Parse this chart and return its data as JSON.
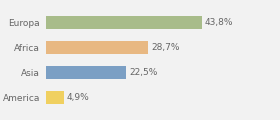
{
  "categories": [
    "Europa",
    "Africa",
    "Asia",
    "America"
  ],
  "values": [
    43.8,
    28.7,
    22.5,
    4.9
  ],
  "labels": [
    "43,8%",
    "28,7%",
    "22,5%",
    "4,9%"
  ],
  "bar_colors": [
    "#a8bc8a",
    "#e8b882",
    "#7b9fc4",
    "#f0d060"
  ],
  "background_color": "#f2f2f2",
  "xlim": [
    0,
    65
  ],
  "bar_height": 0.5,
  "label_fontsize": 6.5,
  "tick_fontsize": 6.5,
  "label_color": "#666666",
  "tick_color": "#666666"
}
